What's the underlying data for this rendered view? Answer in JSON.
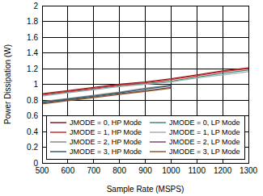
{
  "chart_data": {
    "type": "line",
    "x_label": "Sample Rate (MSPS)",
    "y_label": "Power Dissipation (W)",
    "x": [
      500,
      600,
      700,
      800,
      900,
      1000,
      1100,
      1200,
      1300
    ],
    "series": [
      {
        "name": "JMODE = 0, HP Mode",
        "color": "#8b1a1a",
        "values": [
          0.88,
          0.92,
          0.96,
          1.0,
          1.03,
          1.07,
          1.12,
          1.17,
          1.21
        ]
      },
      {
        "name": "JMODE = 0, LP Mode",
        "color": "#3c8c73",
        "values": [
          0.86,
          0.9,
          0.94,
          0.98,
          1.01,
          1.04,
          1.09,
          1.14,
          1.18
        ]
      },
      {
        "name": "JMODE = 1, HP Mode",
        "color": "#d42a2a",
        "values": [
          0.87,
          0.91,
          0.95,
          0.99,
          1.02,
          1.06,
          1.11,
          1.16,
          1.2
        ]
      },
      {
        "name": "JMODE = 1, LP Mode",
        "color": "#a3aebb",
        "values": [
          0.85,
          0.89,
          0.93,
          0.97,
          1.0,
          1.03,
          1.08,
          1.12,
          1.16
        ]
      },
      {
        "name": "JMODE = 2, HP Mode",
        "color": "#8a8a8a",
        "values": [
          0.78,
          0.82,
          0.86,
          0.9,
          0.95,
          0.99,
          null,
          null,
          null
        ]
      },
      {
        "name": "JMODE = 2, LP Mode",
        "color": "#7a4a6e",
        "values": [
          0.76,
          0.8,
          0.84,
          0.88,
          0.92,
          0.96,
          null,
          null,
          null
        ]
      },
      {
        "name": "JMODE = 3, HP Mode",
        "color": "#2f5f6a",
        "values": [
          0.77,
          0.81,
          0.85,
          0.89,
          0.94,
          0.98,
          null,
          null,
          null
        ]
      },
      {
        "name": "JMODE = 3, LP Mode",
        "color": "#8b5a2b",
        "values": [
          0.75,
          0.79,
          0.83,
          0.87,
          0.91,
          0.95,
          null,
          null,
          null
        ]
      }
    ],
    "xlim": [
      500,
      1300
    ],
    "xticks": [
      500,
      600,
      700,
      800,
      900,
      1000,
      1100,
      1200,
      1300
    ],
    "ylim": [
      0,
      2
    ],
    "yticks": [
      0,
      0.2,
      0.4,
      0.6,
      0.8,
      1,
      1.2,
      1.4,
      1.6,
      1.8,
      2
    ],
    "grid": true,
    "legend": "bottom"
  }
}
